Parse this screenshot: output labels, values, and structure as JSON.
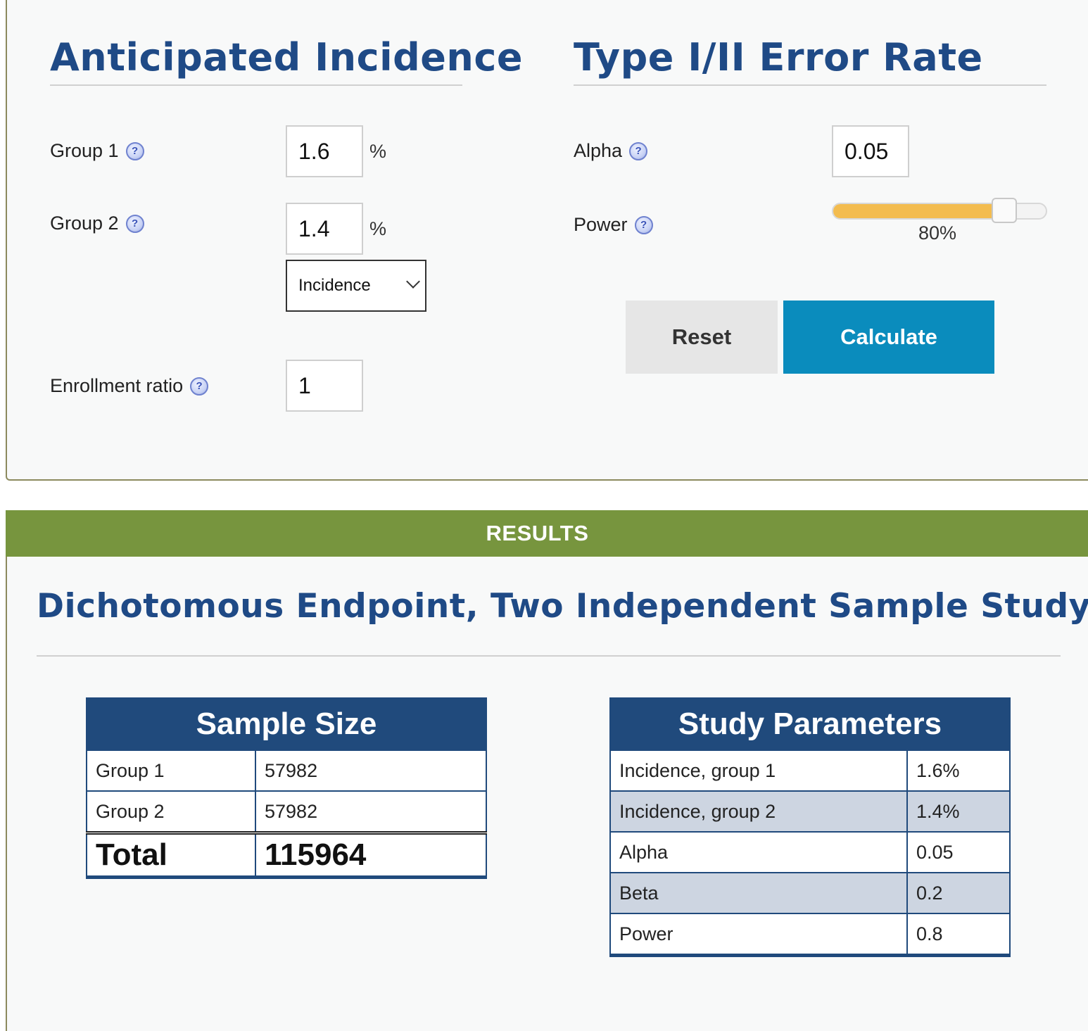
{
  "incidence": {
    "title": "Anticipated Incidence",
    "group1": {
      "label": "Group 1",
      "value": "1.6",
      "unit": "%"
    },
    "group2": {
      "label": "Group 2",
      "value": "1.4",
      "unit": "%"
    },
    "type_select": {
      "selected": "Incidence"
    },
    "enrollment": {
      "label": "Enrollment ratio",
      "value": "1"
    }
  },
  "error_rate": {
    "title": "Type I/II Error Rate",
    "alpha": {
      "label": "Alpha",
      "value": "0.05"
    },
    "power": {
      "label": "Power",
      "value_label": "80%",
      "fraction": 0.8
    }
  },
  "buttons": {
    "reset": "Reset",
    "calculate": "Calculate"
  },
  "help_glyph": "?",
  "colors": {
    "accent_blue": "#1f4a86",
    "results_green": "#77953e",
    "calculate_blue": "#0a8cbd",
    "slider_fill": "#f3bc4f"
  },
  "results": {
    "banner": "RESULTS",
    "title": "Dichotomous Endpoint, Two Independent Sample Study",
    "sample_size": {
      "title": "Sample Size",
      "rows": [
        {
          "label": "Group 1",
          "value": "57982"
        },
        {
          "label": "Group 2",
          "value": "57982"
        }
      ],
      "total": {
        "label": "Total",
        "value": "115964"
      }
    },
    "study_parameters": {
      "title": "Study Parameters",
      "rows": [
        {
          "label": "Incidence, group 1",
          "value": "1.6%"
        },
        {
          "label": "Incidence, group 2",
          "value": "1.4%"
        },
        {
          "label": "Alpha",
          "value": "0.05"
        },
        {
          "label": "Beta",
          "value": "0.2"
        },
        {
          "label": "Power",
          "value": "0.8"
        }
      ]
    }
  }
}
